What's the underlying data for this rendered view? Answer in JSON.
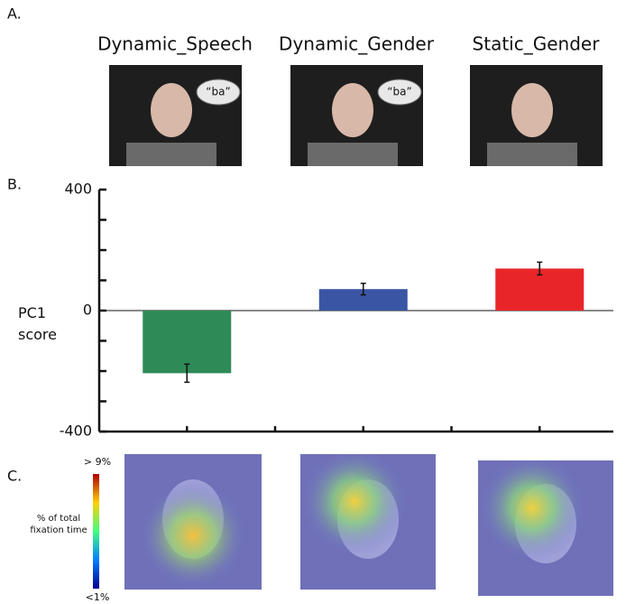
{
  "panel_labels": [
    "A.",
    "B.",
    "C."
  ],
  "speech_bubbles": [
    "“ba”",
    "“ba”"
  ],
  "chart_data": {
    "type": "bar",
    "categories": [
      "Dynamic_Speech",
      "Dynamic_Gender",
      "Static_Gender"
    ],
    "values": [
      -207,
      71,
      139
    ],
    "errors": [
      30,
      19,
      21
    ],
    "colors": [
      "#2e8b57",
      "#3a55a4",
      "#e8262a"
    ],
    "ylabel": "PC1 score",
    "ylim": [
      -400,
      400
    ],
    "yticks": [
      -400,
      0,
      400
    ],
    "yminorticks": [
      -300,
      -200,
      -100,
      100,
      200,
      300
    ]
  },
  "colorbar": {
    "max_label": "> 9%",
    "min_label": "<1%",
    "title": "% of total fixation time"
  }
}
